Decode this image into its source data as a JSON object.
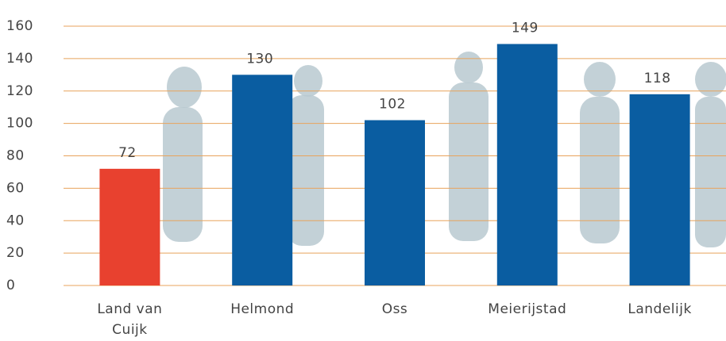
{
  "chart_data": {
    "type": "bar",
    "categories": [
      "Land van Cuijk",
      "Helmond",
      "Oss",
      "Meierijstad",
      "Landelijk"
    ],
    "values": [
      72,
      130,
      102,
      149,
      118
    ],
    "colors": [
      "#e8412f",
      "#0a5da1",
      "#0a5da1",
      "#0a5da1",
      "#0a5da1"
    ],
    "ylim": [
      0,
      160
    ],
    "yticks": [
      0,
      20,
      40,
      60,
      80,
      100,
      120,
      140,
      160
    ],
    "grid": true
  }
}
